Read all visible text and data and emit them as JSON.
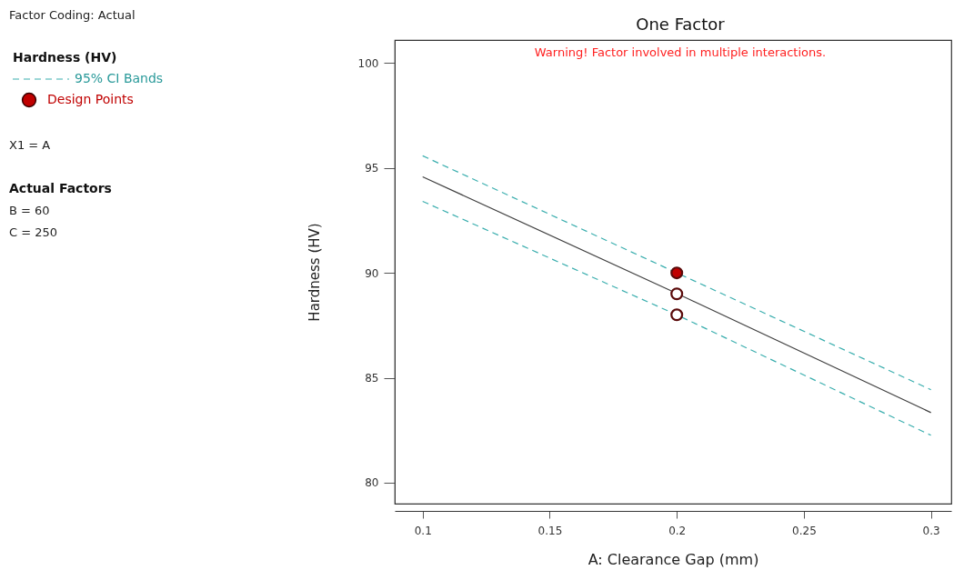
{
  "chart_data": {
    "type": "scatter",
    "title": "One Factor",
    "xlabel": "A: Clearance Gap (mm)",
    "ylabel": "Hardness (HV)",
    "legend_title": "Hardness (HV)",
    "legend": "left",
    "annotations": [
      "Factor Coding: Actual",
      "X1 = A",
      "Actual Factors",
      "B = 60",
      "C = 250",
      "Warning! Factor involved in multiple interactions."
    ],
    "xlim": [
      0.089,
      0.308
    ],
    "ylim": [
      79,
      101.1
    ],
    "xticks": [
      0.1,
      0.15,
      0.2,
      0.25,
      0.3
    ],
    "yticks": [
      80,
      85,
      90,
      95,
      100
    ],
    "series": [
      {
        "type": "line",
        "color": "#404040",
        "x": [
          0.1,
          0.2,
          0.3
        ],
        "values": [
          94.58,
          89.02,
          83.34
        ],
        "line_style": "solid",
        "marker": "none"
      },
      {
        "name": "95% CI Bands",
        "type": "line",
        "color": "#3aaeae",
        "x": [
          0.1,
          0.2,
          0.3
        ],
        "values": [
          95.58,
          90.0,
          84.43
        ],
        "line_style": "dashed",
        "marker": "none"
      },
      {
        "type": "line",
        "color": "#3aaeae",
        "x": [
          0.1,
          0.2,
          0.3
        ],
        "values": [
          93.41,
          88.0,
          82.26
        ],
        "line_style": "dashed",
        "marker": "none"
      },
      {
        "name": "Design Points",
        "color": "#c00000",
        "colors": [
          "#c00000",
          "#ffffff",
          "#ffffff"
        ],
        "x": [
          0.2,
          0.2,
          0.2
        ],
        "values": [
          90,
          89,
          88
        ],
        "marker": "circle"
      }
    ]
  }
}
